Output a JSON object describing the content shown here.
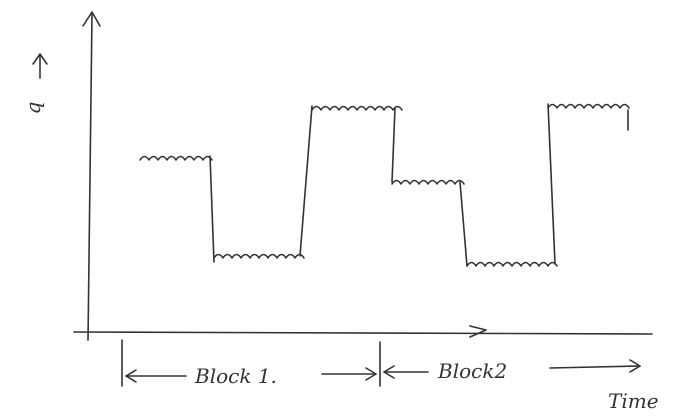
{
  "axes": {
    "y_label": "q",
    "x_label": "Time"
  },
  "blocks": [
    {
      "label": "Block 1."
    },
    {
      "label": "Block2"
    }
  ]
}
